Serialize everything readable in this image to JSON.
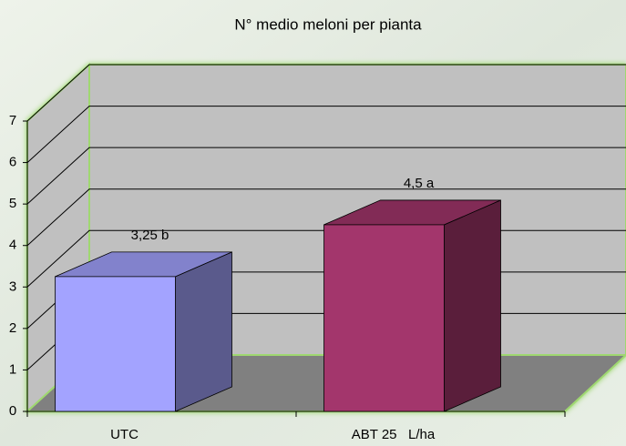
{
  "chart_data": {
    "type": "bar3d",
    "title": "N° medio meloni per pianta",
    "categories": [
      "UTC",
      "ABT 25   L/ha"
    ],
    "values": [
      3.25,
      4.5
    ],
    "value_labels": [
      "3,25 b",
      "4,5 a"
    ],
    "colors": [
      "#a3a3ff",
      "#a3366c"
    ],
    "ylim": [
      0,
      7
    ],
    "yticks": [
      0,
      1,
      2,
      3,
      4,
      5,
      6,
      7
    ],
    "grid": true
  }
}
